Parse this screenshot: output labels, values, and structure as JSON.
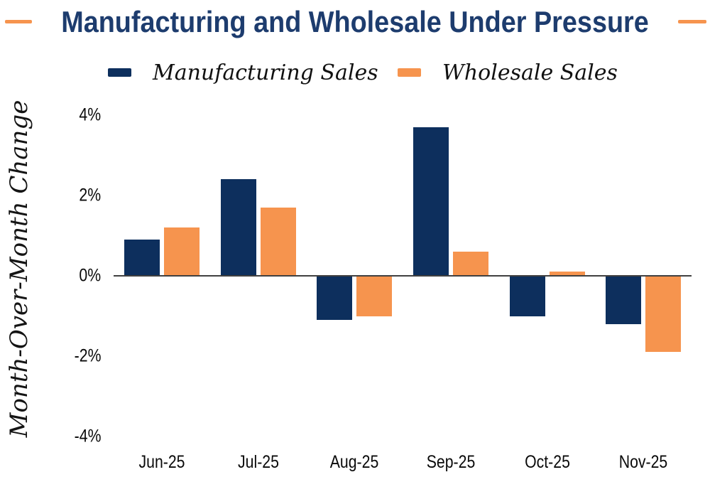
{
  "title": "Manufacturing and Wholesale Under Pressure",
  "legend": [
    {
      "label": "Manufacturing Sales",
      "color": "#0d2f5d"
    },
    {
      "label": "Wholesale Sales",
      "color": "#f6944e"
    }
  ],
  "colors": {
    "navy_bar": "#0d2f5d",
    "orange_bar": "#f6944e",
    "title_navy": "#1d3c6e",
    "title_dash_orange": "#f6944e",
    "axis_line": "#404040",
    "label_text": "#0a0a0a"
  },
  "chart_data": {
    "type": "bar",
    "title": "Manufacturing and Wholesale Under Pressure",
    "categories": [
      "Jun-25",
      "Jul-25",
      "Aug-25",
      "Sep-25",
      "Oct-25",
      "Nov-25"
    ],
    "series": [
      {
        "name": "Manufacturing Sales",
        "color": "#0d2f5d",
        "values": [
          0.9,
          2.4,
          -1.1,
          3.7,
          -1.0,
          -1.2
        ]
      },
      {
        "name": "Wholesale Sales",
        "color": "#f6944e",
        "values": [
          1.2,
          1.7,
          -1.0,
          0.6,
          0.1,
          -1.9
        ]
      }
    ],
    "xlabel": "",
    "ylabel": "Month-Over-Month Change",
    "ylim": [
      -4,
      4
    ],
    "yticks": [
      4,
      2,
      0,
      -2,
      -4
    ],
    "ytick_labels": [
      "4%",
      "2%",
      "0%",
      "-2%",
      "-4%"
    ],
    "grid": false,
    "legend_position": "top"
  }
}
